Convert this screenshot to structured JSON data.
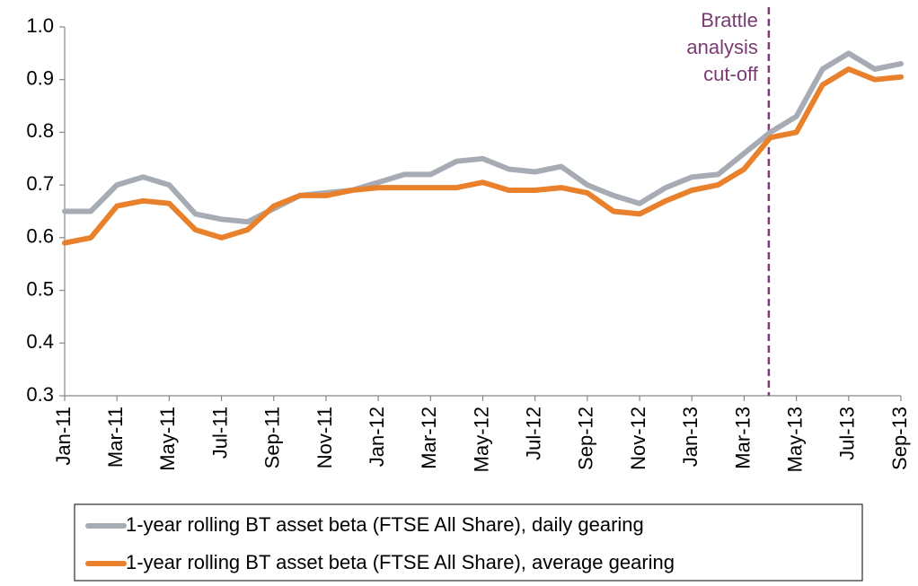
{
  "chart_data": {
    "type": "line",
    "categories": [
      "Jan-11",
      null,
      "Mar-11",
      null,
      "May-11",
      null,
      "Jul-11",
      null,
      "Sep-11",
      null,
      "Nov-11",
      null,
      "Jan-12",
      null,
      "Mar-12",
      null,
      "May-12",
      null,
      "Jul-12",
      null,
      "Sep-12",
      null,
      "Nov-12",
      null,
      "Jan-13",
      null,
      "Mar-13",
      null,
      "May-13",
      null,
      "Jul-13",
      null,
      "Sep-13"
    ],
    "series": [
      {
        "name": "1-year rolling BT asset beta (FTSE All Share), daily gearing",
        "color": "#a7acb4",
        "values": [
          0.65,
          0.65,
          0.7,
          0.715,
          0.7,
          0.645,
          0.635,
          0.63,
          0.655,
          0.68,
          0.685,
          0.69,
          0.705,
          0.72,
          0.72,
          0.745,
          0.75,
          0.73,
          0.725,
          0.735,
          0.7,
          0.68,
          0.665,
          0.695,
          0.715,
          0.72,
          0.76,
          0.8,
          0.83,
          0.92,
          0.95,
          0.92,
          0.93
        ]
      },
      {
        "name": "1-year rolling BT asset beta (FTSE All Share), average gearing",
        "color": "#e8802c",
        "values": [
          0.59,
          0.6,
          0.66,
          0.67,
          0.665,
          0.615,
          0.6,
          0.615,
          0.66,
          0.68,
          0.68,
          0.69,
          0.695,
          0.695,
          0.695,
          0.695,
          0.705,
          0.69,
          0.69,
          0.695,
          0.685,
          0.65,
          0.645,
          0.67,
          0.69,
          0.7,
          0.73,
          0.79,
          0.8,
          0.89,
          0.92,
          0.9,
          0.905
        ]
      }
    ],
    "ylim": [
      0.3,
      1.0
    ],
    "yticks": [
      0.3,
      0.4,
      0.5,
      0.6,
      0.7,
      0.8,
      0.9,
      {
        "value": 1.0,
        "label": "1.0"
      }
    ],
    "annotation": [
      "Brattle",
      "analysis",
      "cut-off"
    ],
    "grid": false
  }
}
